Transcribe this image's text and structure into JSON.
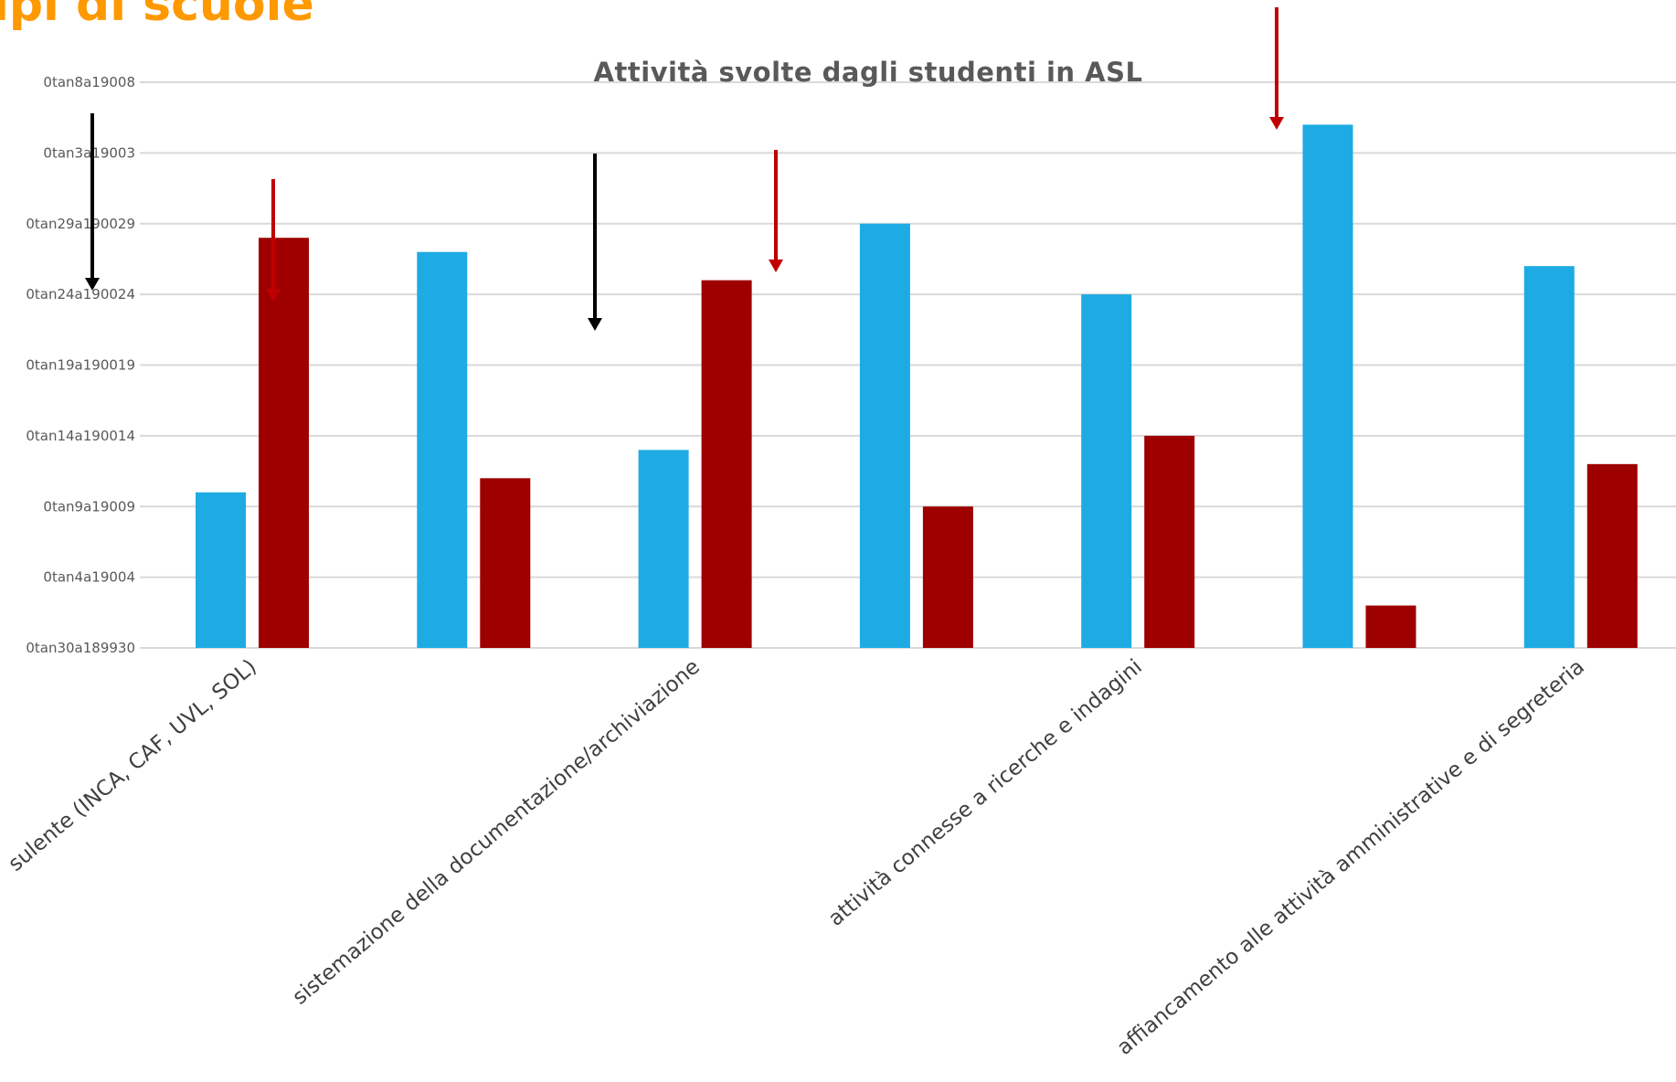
{
  "slide": {
    "title": "ipi di scuole",
    "title_color": "#FF9900"
  },
  "chart_data": {
    "type": "bar",
    "title": "Attività svolte dagli studenti in ASL",
    "xlabel": "",
    "ylabel": "",
    "y_tick_labels": [
      "0tan30a189930",
      "0tan4a19004",
      "0tan9a19009",
      "0tan14a190014",
      "0tan19a190019",
      "0tan24a190024",
      "0tan29a190029",
      "0tan3a19003",
      "0tan8a19008"
    ],
    "ylim": [
      0,
      8
    ],
    "grid": true,
    "legend": "none",
    "category_labels_shown": [
      "sulente (INCA, CAF, UVL, SOL)",
      "sistemazione della documentazione/archiviazione",
      "attività connesse a ricerche e indagini",
      "affiancamento alle attività amministrative e di segreteria"
    ],
    "series": [
      {
        "color": "#1EABE3",
        "values": [
          2.2,
          5.6,
          2.8,
          6.0,
          5.0,
          7.4,
          5.4
        ]
      },
      {
        "color": "#9E0000",
        "values": [
          5.8,
          2.4,
          5.2,
          2.0,
          3.0,
          0.6,
          2.6
        ]
      }
    ],
    "annotations": [
      {
        "type": "arrow",
        "color": "#000000"
      },
      {
        "type": "arrow",
        "color": "#C00000"
      },
      {
        "type": "arrow",
        "color": "#000000"
      },
      {
        "type": "arrow",
        "color": "#C00000"
      },
      {
        "type": "arrow",
        "color": "#C00000"
      }
    ]
  }
}
